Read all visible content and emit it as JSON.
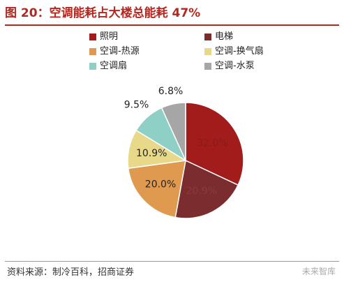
{
  "title": "图 20：空调能耗占大楼总能耗 47%",
  "source": "资料来源：制冷百科，招商证券",
  "watermark": "未来智库",
  "colors": {
    "accent": "#b5261e"
  },
  "chart_data": {
    "type": "pie",
    "title": "图 20：空调能耗占大楼总能耗 47%",
    "legend_position": "top",
    "series": [
      {
        "name": "照明",
        "value": 32.0,
        "label": "32.0%",
        "color": "#a31c1c"
      },
      {
        "name": "电梯",
        "value": 20.9,
        "label": "20.9%",
        "color": "#7b2c2e"
      },
      {
        "name": "空调-热源",
        "value": 20.0,
        "label": "20.0%",
        "color": "#e09a50"
      },
      {
        "name": "空调-换气扇",
        "value": 10.9,
        "label": "10.9%",
        "color": "#e8d98a"
      },
      {
        "name": "空调扇",
        "value": 9.5,
        "label": "9.5%",
        "color": "#8ecfc6"
      },
      {
        "name": "空调-水泵",
        "value": 6.8,
        "label": "6.8%",
        "color": "#a6a6a6"
      }
    ]
  }
}
